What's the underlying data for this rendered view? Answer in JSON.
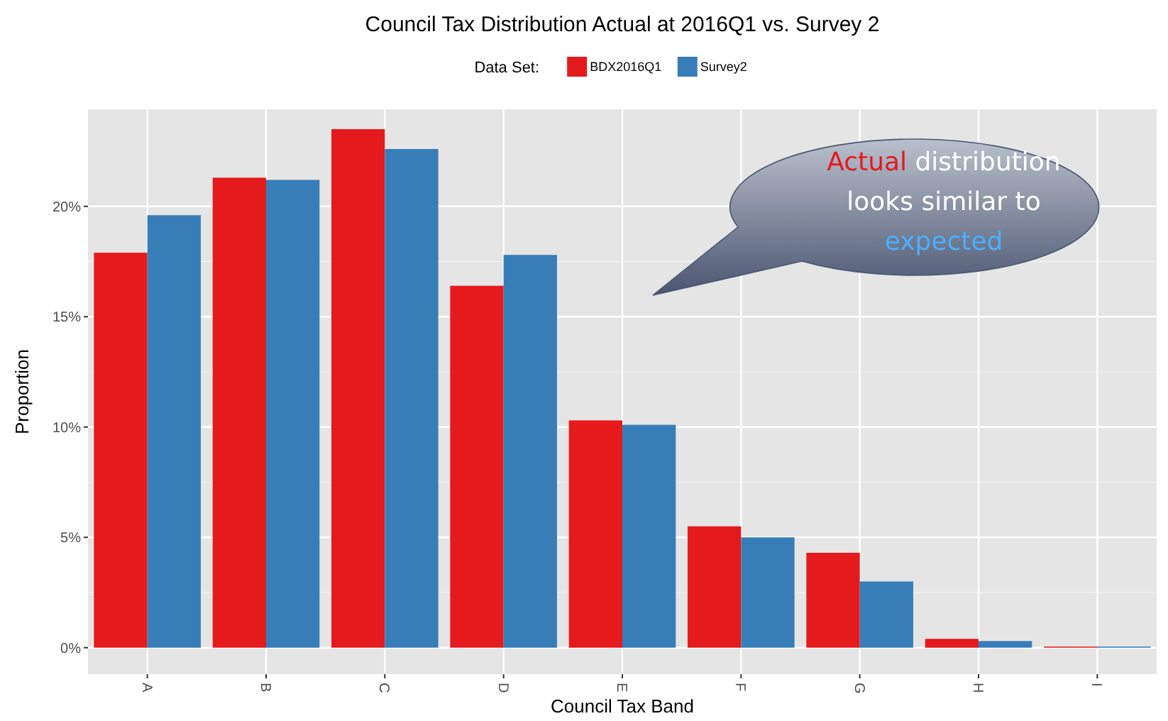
{
  "chart_data": {
    "type": "bar",
    "title": "Council Tax Distribution Actual at 2016Q1 vs. Survey 2",
    "xlabel": "Council Tax Band",
    "ylabel": "Proportion",
    "legend_title": "Data Set:",
    "legend": "top",
    "categories": [
      "A",
      "B",
      "C",
      "D",
      "E",
      "F",
      "G",
      "H",
      "I"
    ],
    "series": [
      {
        "name": "BDX2016Q1",
        "color": "#e41a1c",
        "values": [
          17.9,
          21.3,
          23.5,
          16.4,
          10.3,
          5.5,
          4.3,
          0.4,
          0.05
        ]
      },
      {
        "name": "Survey2",
        "color": "#377eb8",
        "values": [
          19.6,
          21.2,
          22.6,
          17.8,
          10.1,
          5.0,
          3.0,
          0.3,
          0.05
        ]
      }
    ],
    "ylim": [
      -1.2,
      24.4
    ],
    "yticks": [
      {
        "value": 0,
        "label": "0%"
      },
      {
        "value": 5,
        "label": "5%"
      },
      {
        "value": 10,
        "label": "10%"
      },
      {
        "value": 15,
        "label": "15%"
      },
      {
        "value": 20,
        "label": "20%"
      }
    ],
    "grid": true,
    "annotations": [
      "Actual distribution looks similar to expected"
    ]
  }
}
